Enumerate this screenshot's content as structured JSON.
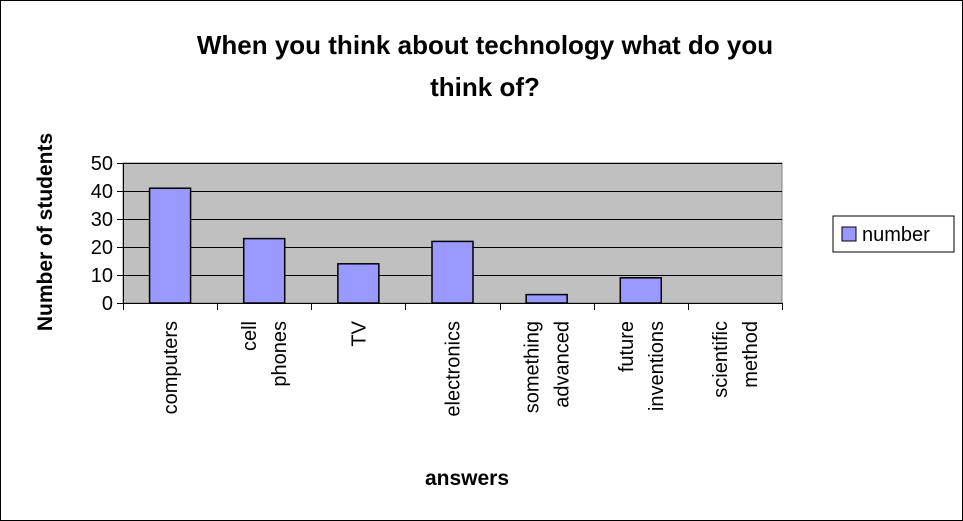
{
  "chart_data": {
    "type": "bar",
    "title_lines": [
      "When you think about technology what do you",
      "think of?"
    ],
    "xlabel": "answers",
    "ylabel": "Number of students",
    "categories": [
      [
        "computers"
      ],
      [
        "cell",
        "phones"
      ],
      [
        "TV"
      ],
      [
        "electronics"
      ],
      [
        "something",
        "advanced"
      ],
      [
        "future",
        "inventions"
      ],
      [
        "scientific",
        "method"
      ]
    ],
    "series": [
      {
        "name": "number",
        "values": [
          41,
          23,
          14,
          22,
          3,
          9,
          0
        ]
      }
    ],
    "ylim": [
      0,
      50
    ],
    "yticks": [
      0,
      10,
      20,
      30,
      40,
      50
    ],
    "grid": true,
    "legend_position": "right",
    "colors": {
      "bar": "#9999ff",
      "plot_bg": "#c0c0c0",
      "edge": "#000000"
    }
  }
}
